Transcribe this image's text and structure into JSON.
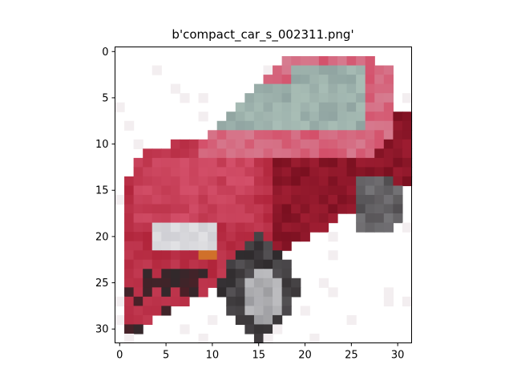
{
  "chart_data": {
    "type": "heatmap",
    "title": "b'compact_car_s_002311.png'",
    "image_size": [
      32,
      32
    ],
    "xlim": [
      -0.5,
      31.5
    ],
    "ylim": [
      31.5,
      -0.5
    ],
    "x_ticks": [
      0,
      5,
      10,
      15,
      20,
      25,
      30
    ],
    "y_ticks": [
      0,
      5,
      10,
      15,
      20,
      25,
      30
    ],
    "x_tick_labels": [
      "0",
      "5",
      "10",
      "15",
      "20",
      "25",
      "30"
    ],
    "y_tick_labels": [
      "0",
      "5",
      "10",
      "15",
      "20",
      "25",
      "30"
    ],
    "grid": false,
    "subject": "red compact car, pixelated low-resolution image",
    "palette": {
      "background": "#ffffff",
      "car_body": "#b0243a",
      "car_body_light": "#d4506a",
      "car_body_dark": "#7a1020",
      "window": "#8fa3a0",
      "window_light": "#b9cfc4",
      "tire": "#2e2a2c",
      "rim": "#9a9a9e",
      "headlight": "#cfcfd4",
      "indicator": "#d0702a"
    }
  }
}
